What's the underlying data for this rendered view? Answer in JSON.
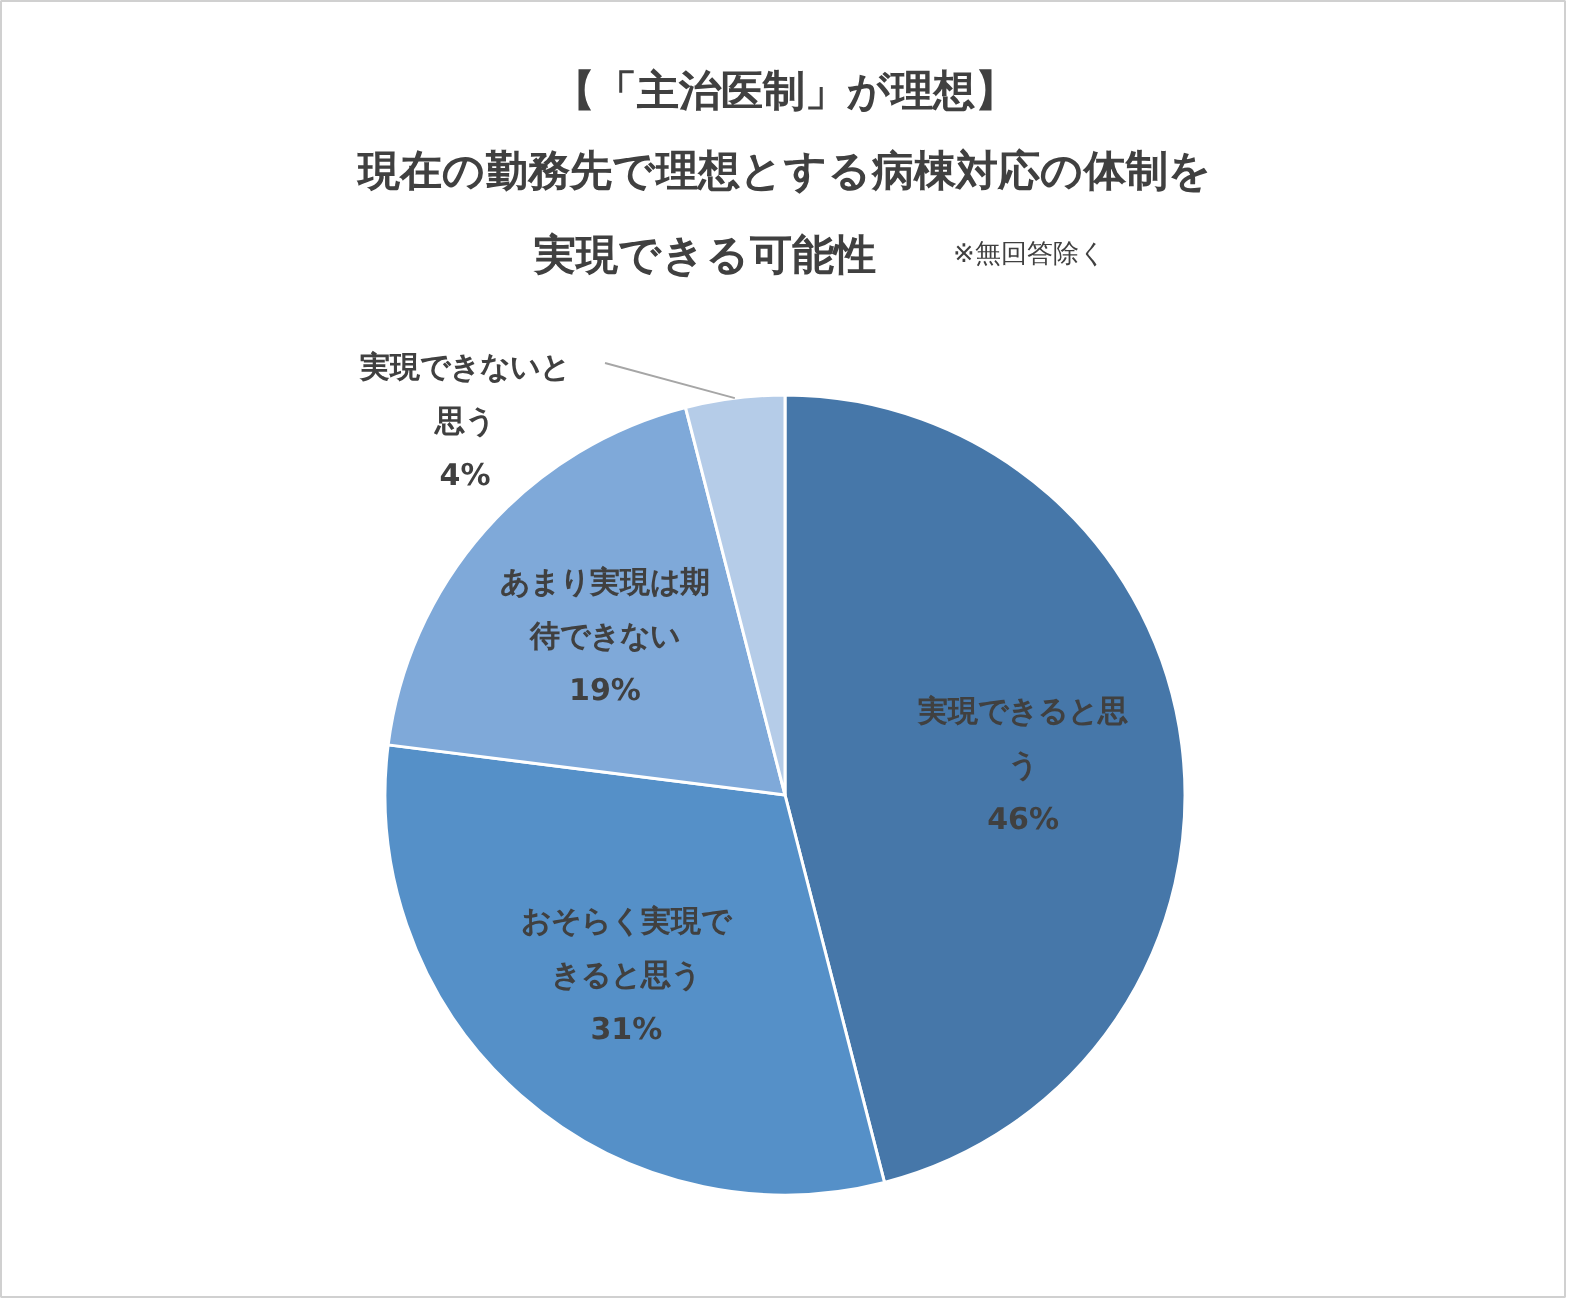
{
  "chart_data": {
    "type": "pie",
    "title": "【「主治医制」が理想】現在の勤務先で理想とする病棟対応の体制を実現できる可能性",
    "annotations": [
      "※無回答除く"
    ],
    "categories": [
      "実現できると思う",
      "おそらく実現できると思う",
      "あまり実現は期待できない",
      "実現できないと思う"
    ],
    "values": [
      46,
      31,
      19,
      4
    ],
    "value_labels": [
      "46%",
      "31%",
      "19%",
      "4%"
    ],
    "colors": [
      "#4677a9",
      "#5590c8",
      "#7fa9d9",
      "#b5cce8"
    ]
  }
}
